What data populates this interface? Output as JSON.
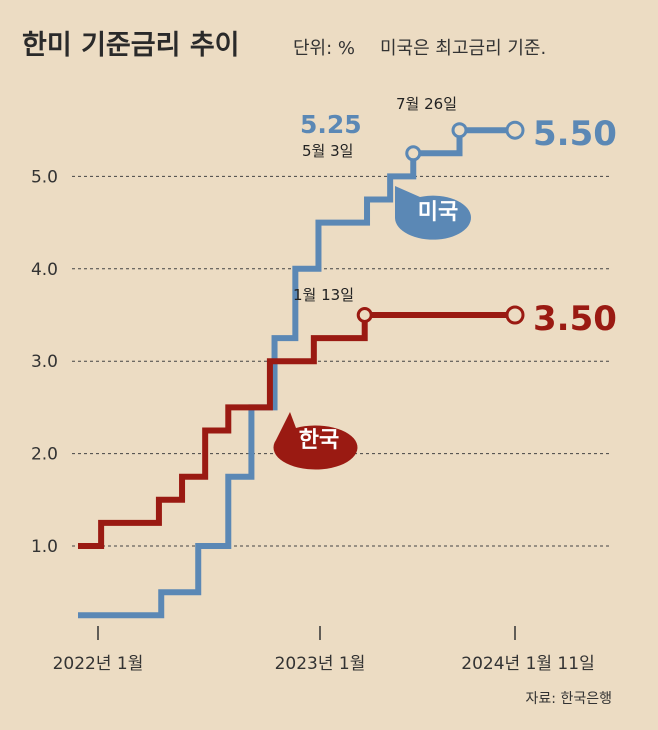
{
  "chart_data": {
    "type": "line",
    "step": true,
    "title": "한미 기준금리 추이",
    "unit_label": "단위: %",
    "note": "미국은 최고금리 기준.",
    "source": "자료: 한국은행",
    "ylim": [
      0,
      5.6
    ],
    "y_ticks": [
      1.0,
      2.0,
      3.0,
      4.0,
      5.0
    ],
    "y_tick_labels": [
      "1.0",
      "2.0",
      "3.0",
      "4.0",
      "5.0"
    ],
    "x_tick_labels": [
      "2022년 1월",
      "2023년 1월",
      "2024년 1월 11일"
    ],
    "series": [
      {
        "name": "미국",
        "color": "#5b88b5",
        "x": [
          0.0,
          2.7,
          3.6,
          5.2,
          6.5,
          7.5,
          8.5,
          9.4,
          10.4,
          12.5,
          13.5,
          14.5,
          15.5,
          16.5,
          18.9
        ],
        "y": [
          0.25,
          0.25,
          0.5,
          1.0,
          1.75,
          2.5,
          3.25,
          4.0,
          4.5,
          4.75,
          5.0,
          5.25,
          5.25,
          5.5,
          5.5
        ],
        "markers": [
          {
            "x": 14.5,
            "y": 5.25,
            "label": "5월 3일"
          },
          {
            "x": 16.5,
            "y": 5.5,
            "label": "7월 26일"
          },
          {
            "x": 18.9,
            "y": 5.5,
            "label": ""
          }
        ],
        "value_label": "5.25",
        "end_label": "5.50",
        "bubble_label": "미국"
      },
      {
        "name": "한국",
        "color": "#9a1a12",
        "x": [
          0.0,
          1.0,
          3.5,
          4.5,
          5.5,
          6.5,
          7.5,
          8.3,
          9.0,
          10.2,
          12.4,
          18.9
        ],
        "y": [
          1.0,
          1.25,
          1.5,
          1.75,
          2.25,
          2.5,
          2.5,
          3.0,
          3.0,
          3.25,
          3.5,
          3.5
        ],
        "markers": [
          {
            "x": 12.4,
            "y": 3.5,
            "label": "1월 13일"
          },
          {
            "x": 18.9,
            "y": 3.5,
            "label": ""
          }
        ],
        "end_label": "3.50",
        "bubble_label": "한국"
      }
    ]
  }
}
